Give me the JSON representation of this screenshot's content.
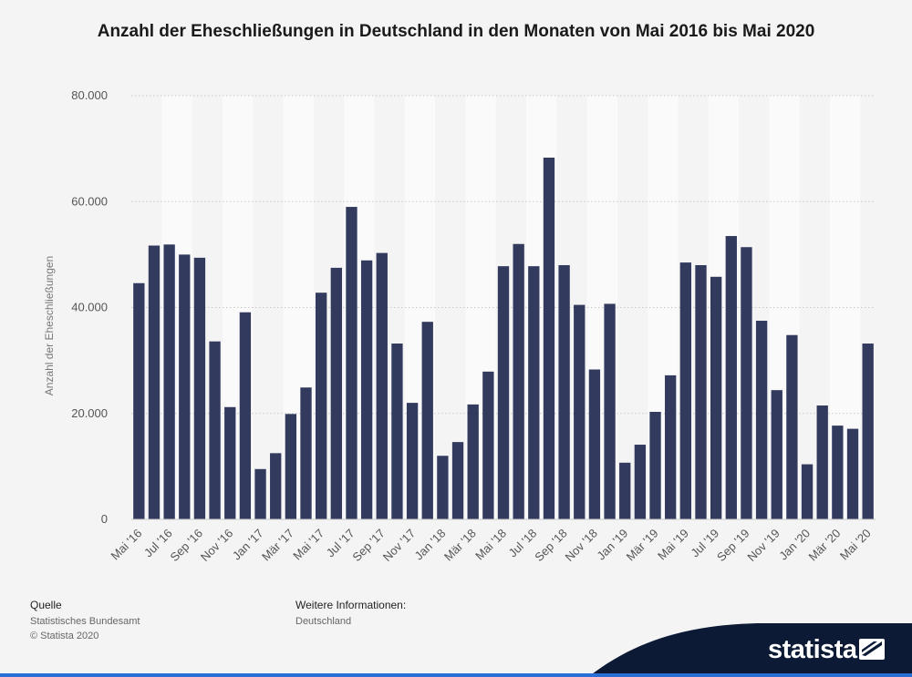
{
  "chart_data": {
    "type": "bar",
    "title": "Anzahl der Eheschließungen in Deutschland in den Monaten von Mai 2016 bis Mai 2020",
    "xlabel": "",
    "ylabel": "Anzahl der Eheschließungen",
    "ylim": [
      0,
      80000
    ],
    "yticks": [
      0,
      20000,
      40000,
      60000,
      80000
    ],
    "ytick_labels": [
      "0",
      "20.000",
      "40.000",
      "60.000",
      "80.000"
    ],
    "grid": true,
    "categories": [
      "Mai '16",
      "Jun '16",
      "Jul '16",
      "Aug '16",
      "Sep '16",
      "Okt '16",
      "Nov '16",
      "Dez '16",
      "Jan '17",
      "Feb '17",
      "Mär '17",
      "Apr '17",
      "Mai '17",
      "Jun '17",
      "Jul '17",
      "Aug '17",
      "Sep '17",
      "Okt '17",
      "Nov '17",
      "Dez '17",
      "Jan '18",
      "Feb '18",
      "Mär '18",
      "Apr '18",
      "Mai '18",
      "Jun '18",
      "Jul '18",
      "Aug '18",
      "Sep '18",
      "Okt '18",
      "Nov '18",
      "Dez '18",
      "Jan '19",
      "Feb '19",
      "Mär '19",
      "Apr '19",
      "Mai '19",
      "Jun '19",
      "Jul '19",
      "Aug '19",
      "Sep '19",
      "Okt '19",
      "Nov '19",
      "Dez '19",
      "Jan '20",
      "Feb '20",
      "Mär '20",
      "Apr '20",
      "Mai '20"
    ],
    "tick_labels_shown": [
      "Mai '16",
      "Jul '16",
      "Sep '16",
      "Nov '16",
      "Jan '17",
      "Mär '17",
      "Mai '17",
      "Jul '17",
      "Sep '17",
      "Nov '17",
      "Jan '18",
      "Mär '18",
      "Mai '18",
      "Jul '18",
      "Sep '18",
      "Nov '18",
      "Jan '19",
      "Mär '19",
      "Mai '19",
      "Jul '19",
      "Sep '19",
      "Nov '19",
      "Jan '20",
      "Mär '20",
      "Mai '20"
    ],
    "values": [
      44600,
      51700,
      51900,
      50000,
      49400,
      33600,
      21200,
      39100,
      9500,
      12500,
      19900,
      24900,
      42800,
      47500,
      59000,
      48900,
      50300,
      33200,
      22000,
      37300,
      12000,
      14600,
      21700,
      27900,
      47800,
      52000,
      47800,
      68300,
      48000,
      40500,
      28300,
      40700,
      10700,
      14100,
      20300,
      27200,
      48500,
      48000,
      45800,
      53500,
      51400,
      37500,
      24400,
      34800,
      10400,
      21500,
      17700,
      17100,
      33200
    ],
    "bar_color": "#323a5e",
    "grid_color": "#c8c8c8",
    "band_color": "#fafafa"
  },
  "footer": {
    "source_heading": "Quelle",
    "source_text": "Statistisches Bundesamt",
    "copyright": "© Statista 2020",
    "info_heading": "Weitere Informationen:",
    "info_text": "Deutschland"
  },
  "brand": {
    "name": "statista",
    "color": "#0c1a36",
    "accent": "#2a6fd6"
  }
}
